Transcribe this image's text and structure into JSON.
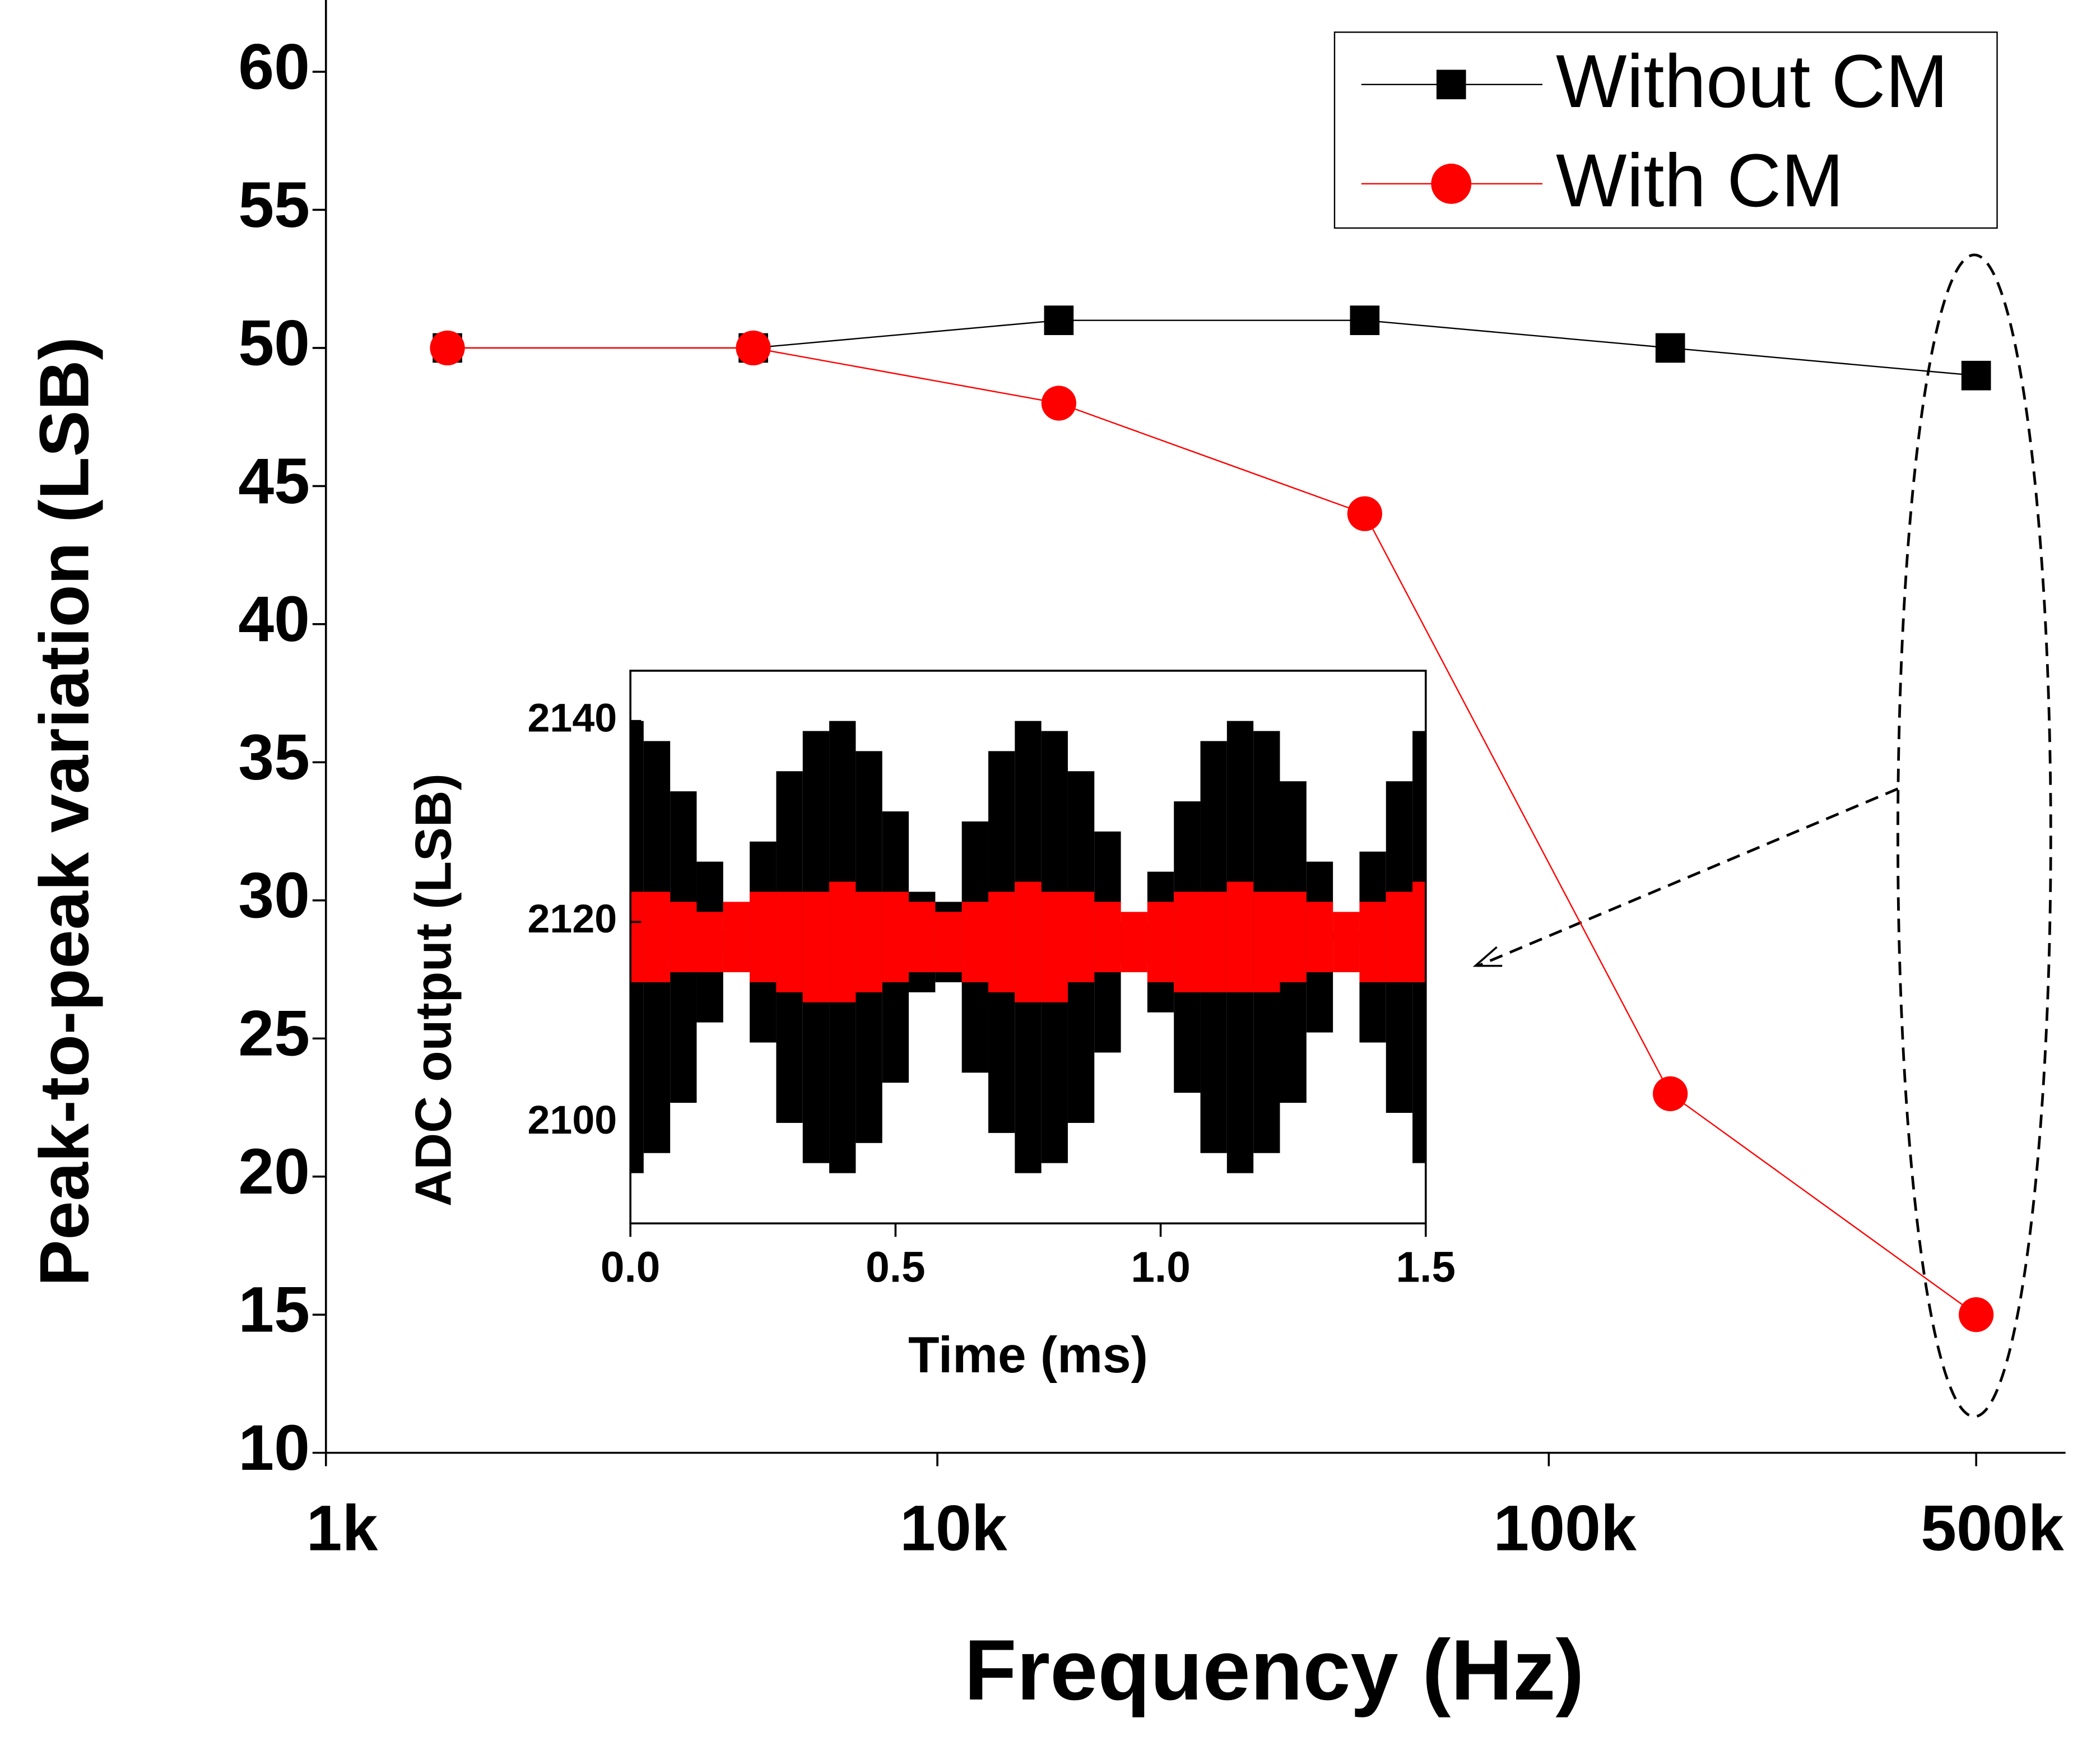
{
  "chart_data": [
    {
      "type": "line",
      "xlabel": "Frequency (Hz)",
      "ylabel": "Peak-to-peak variation (LSB)",
      "x": [
        1580,
        5000,
        15800,
        50000,
        158000,
        500000
      ],
      "series": [
        {
          "name": "Without CM",
          "color": "#000000",
          "marker": "square",
          "values": [
            50,
            50,
            51,
            51,
            50,
            49
          ]
        },
        {
          "name": "With CM",
          "color": "#ff0000",
          "marker": "circle",
          "values": [
            50,
            50,
            48,
            44,
            23,
            15
          ]
        }
      ],
      "xlim": [
        1000,
        700000
      ],
      "xscale": "log",
      "xticks": [
        {
          "value": 1000,
          "label": "1k"
        },
        {
          "value": 10000,
          "label": "10k"
        },
        {
          "value": 100000,
          "label": "100k"
        },
        {
          "value": 500000,
          "label": "500k"
        }
      ],
      "ylim": [
        10,
        62.5
      ],
      "yticks": [
        10,
        15,
        20,
        25,
        30,
        35,
        40,
        45,
        50,
        55,
        60
      ],
      "legend": "upper right"
    },
    {
      "type": "band",
      "xlabel": "Time (ms)",
      "ylabel": "ADC output (LSB)",
      "x": [
        0,
        0.05,
        0.1,
        0.15,
        0.2,
        0.25,
        0.3,
        0.35,
        0.4,
        0.45,
        0.5,
        0.55,
        0.6,
        0.65,
        0.7,
        0.75,
        0.8,
        0.85,
        0.9,
        0.95,
        1.0,
        1.05,
        1.1,
        1.15,
        1.2,
        1.25,
        1.3,
        1.35,
        1.4,
        1.45,
        1.5
      ],
      "series": [
        {
          "name": "Without CM",
          "color": "#000000",
          "upper": [
            2140,
            2138,
            2133,
            2126,
            2119,
            2128,
            2135,
            2139,
            2140,
            2137,
            2131,
            2123,
            2122,
            2130,
            2137,
            2140,
            2139,
            2135,
            2129,
            2120,
            2125,
            2132,
            2138,
            2140,
            2139,
            2134,
            2126,
            2119,
            2127,
            2134,
            2139
          ],
          "lower": [
            2095,
            2097,
            2102,
            2110,
            2117,
            2108,
            2100,
            2096,
            2095,
            2098,
            2104,
            2113,
            2114,
            2105,
            2099,
            2095,
            2096,
            2100,
            2107,
            2116,
            2111,
            2103,
            2097,
            2095,
            2097,
            2102,
            2109,
            2118,
            2108,
            2101,
            2096
          ]
        },
        {
          "name": "With CM",
          "color": "#ff0000",
          "upper": [
            2123,
            2123,
            2122,
            2121,
            2122,
            2123,
            2123,
            2123,
            2124,
            2123,
            2123,
            2122,
            2121,
            2122,
            2123,
            2124,
            2123,
            2123,
            2122,
            2121,
            2122,
            2123,
            2123,
            2124,
            2123,
            2123,
            2122,
            2121,
            2122,
            2123,
            2124
          ],
          "lower": [
            2114,
            2114,
            2115,
            2115,
            2115,
            2114,
            2113,
            2112,
            2112,
            2113,
            2114,
            2115,
            2115,
            2114,
            2113,
            2112,
            2112,
            2114,
            2115,
            2115,
            2114,
            2113,
            2113,
            2113,
            2113,
            2114,
            2115,
            2115,
            2114,
            2114,
            2114
          ]
        }
      ],
      "xlim": [
        0,
        1.5
      ],
      "xticks": [
        {
          "value": 0,
          "label": "0.0"
        },
        0.5,
        {
          "value": 1,
          "label": "1.0"
        },
        1.5
      ],
      "ylim": [
        2090,
        2145
      ],
      "yticks": [
        2100,
        2120,
        2140
      ]
    }
  ]
}
